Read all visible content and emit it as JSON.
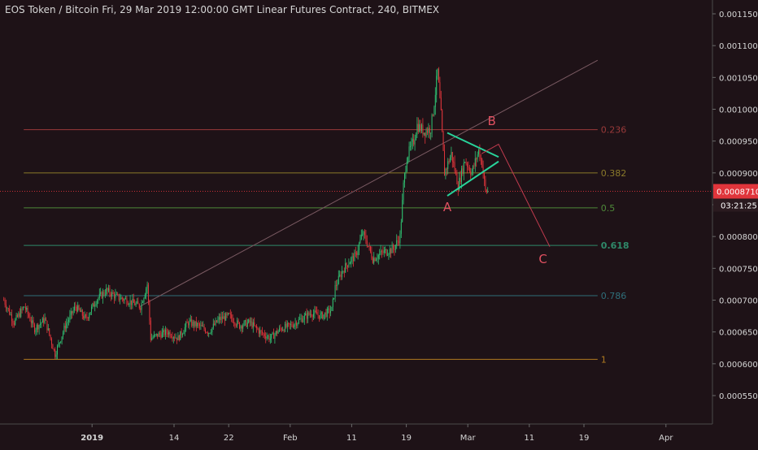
{
  "header": {
    "title": "EOS Token / Bitcoin Fri, 29 Mar 2019 12:00:00 GMT Linear Futures Contract, 240, BITMEX"
  },
  "colors": {
    "background": "#1e1217",
    "text": "#d5d5d5",
    "up_candle": "#2fbf71",
    "down_candle": "#e0353b",
    "price_tag": "#e0353b",
    "triangle": "#28d39a",
    "projection": "#c23b4e"
  },
  "price_tag": {
    "value": "0.0008710",
    "countdown": "03:21:25"
  },
  "chart_data": {
    "type": "candlestick",
    "title": "EOS Token / Bitcoin Fri, 29 Mar 2019 12:00:00 GMT Linear Futures Contract, 240, BITMEX",
    "y_axis_side": "right",
    "ylim": [
      0.0005,
      0.0012
    ],
    "y_ticks": [
      "0.0011500",
      "0.0011000",
      "0.0010500",
      "0.0010000",
      "0.0009500",
      "0.0009000",
      "0.0008500",
      "0.0008000",
      "0.0007500",
      "0.0007000",
      "0.0006500",
      "0.0006000",
      "0.0005500"
    ],
    "x_ticks": [
      {
        "label": "2019",
        "index": 26,
        "bold": true
      },
      {
        "label": "14",
        "index": 50
      },
      {
        "label": "22",
        "index": 66
      },
      {
        "label": "Feb",
        "index": 84
      },
      {
        "label": "11",
        "index": 102
      },
      {
        "label": "19",
        "index": 118
      },
      {
        "label": "Mar",
        "index": 136
      },
      {
        "label": "11",
        "index": 154
      },
      {
        "label": "19",
        "index": 170
      },
      {
        "label": "Apr",
        "index": 194
      }
    ],
    "last_index": 141,
    "ohlc_keypoints": [
      [
        0,
        0.0007
      ],
      [
        3,
        0.000665
      ],
      [
        6,
        0.00069
      ],
      [
        9,
        0.000655
      ],
      [
        12,
        0.00067
      ],
      [
        15,
        0.000615
      ],
      [
        18,
        0.00066
      ],
      [
        21,
        0.00069
      ],
      [
        24,
        0.00067
      ],
      [
        27,
        0.0007
      ],
      [
        30,
        0.000715
      ],
      [
        33,
        0.000705
      ],
      [
        36,
        0.0007
      ],
      [
        40,
        0.00069
      ],
      [
        42,
        0.000725
      ],
      [
        43,
        0.00064
      ],
      [
        45,
        0.000645
      ],
      [
        48,
        0.00065
      ],
      [
        51,
        0.00064
      ],
      [
        54,
        0.000665
      ],
      [
        57,
        0.00066
      ],
      [
        60,
        0.00065
      ],
      [
        63,
        0.00067
      ],
      [
        66,
        0.000675
      ],
      [
        69,
        0.00066
      ],
      [
        72,
        0.000665
      ],
      [
        75,
        0.00065
      ],
      [
        78,
        0.00064
      ],
      [
        81,
        0.000655
      ],
      [
        84,
        0.00066
      ],
      [
        87,
        0.00067
      ],
      [
        90,
        0.00068
      ],
      [
        93,
        0.000675
      ],
      [
        96,
        0.000685
      ],
      [
        97,
        0.00072
      ],
      [
        99,
        0.000745
      ],
      [
        101,
        0.00076
      ],
      [
        103,
        0.00077
      ],
      [
        105,
        0.000805
      ],
      [
        106,
        0.000795
      ],
      [
        108,
        0.000765
      ],
      [
        111,
        0.000775
      ],
      [
        114,
        0.00078
      ],
      [
        116,
        0.0008
      ],
      [
        117,
        0.00088
      ],
      [
        118,
        0.000925
      ],
      [
        120,
        0.00095
      ],
      [
        121,
        0.000975
      ],
      [
        123,
        0.000965
      ],
      [
        125,
        0.00097
      ],
      [
        126,
        0.00101
      ],
      [
        127,
        0.00106
      ],
      [
        128,
        0.00099
      ],
      [
        129,
        0.0009
      ],
      [
        131,
        0.00093
      ],
      [
        133,
        0.00088
      ],
      [
        135,
        0.00092
      ],
      [
        137,
        0.0009
      ],
      [
        139,
        0.000935
      ],
      [
        140,
        0.000915
      ],
      [
        141,
        0.000871
      ]
    ],
    "fib_levels": [
      {
        "label": "0.236",
        "value": 0.000968,
        "color": "#9a3a3a"
      },
      {
        "label": "0.382",
        "value": 0.0009,
        "color": "#8a7a2a"
      },
      {
        "label": "0.5",
        "value": 0.000845,
        "color": "#4f8a3a"
      },
      {
        "label": "0.618",
        "value": 0.000786,
        "color": "#2f8a6a"
      },
      {
        "label": "0.786",
        "value": 0.000707,
        "color": "#2f6f7a"
      },
      {
        "label": "1",
        "value": 0.000607,
        "color": "#b07a20"
      }
    ],
    "annotations": [
      {
        "label": "A",
        "index": 130,
        "value": 0.00084
      },
      {
        "label": "B",
        "index": 143,
        "value": 0.000975
      },
      {
        "label": "C",
        "index": 158,
        "value": 0.000758
      }
    ],
    "triangle": {
      "upper": [
        [
          130,
          0.000963
        ],
        [
          145,
          0.000925
        ]
      ],
      "lower": [
        [
          130,
          0.000864
        ],
        [
          145,
          0.000918
        ]
      ]
    },
    "trendline": [
      [
        40,
        0.00069
      ],
      [
        174,
        0.001077
      ]
    ],
    "projection": [
      [
        140,
        0.00093
      ],
      [
        145,
        0.000945
      ],
      [
        160,
        0.000784
      ]
    ]
  }
}
